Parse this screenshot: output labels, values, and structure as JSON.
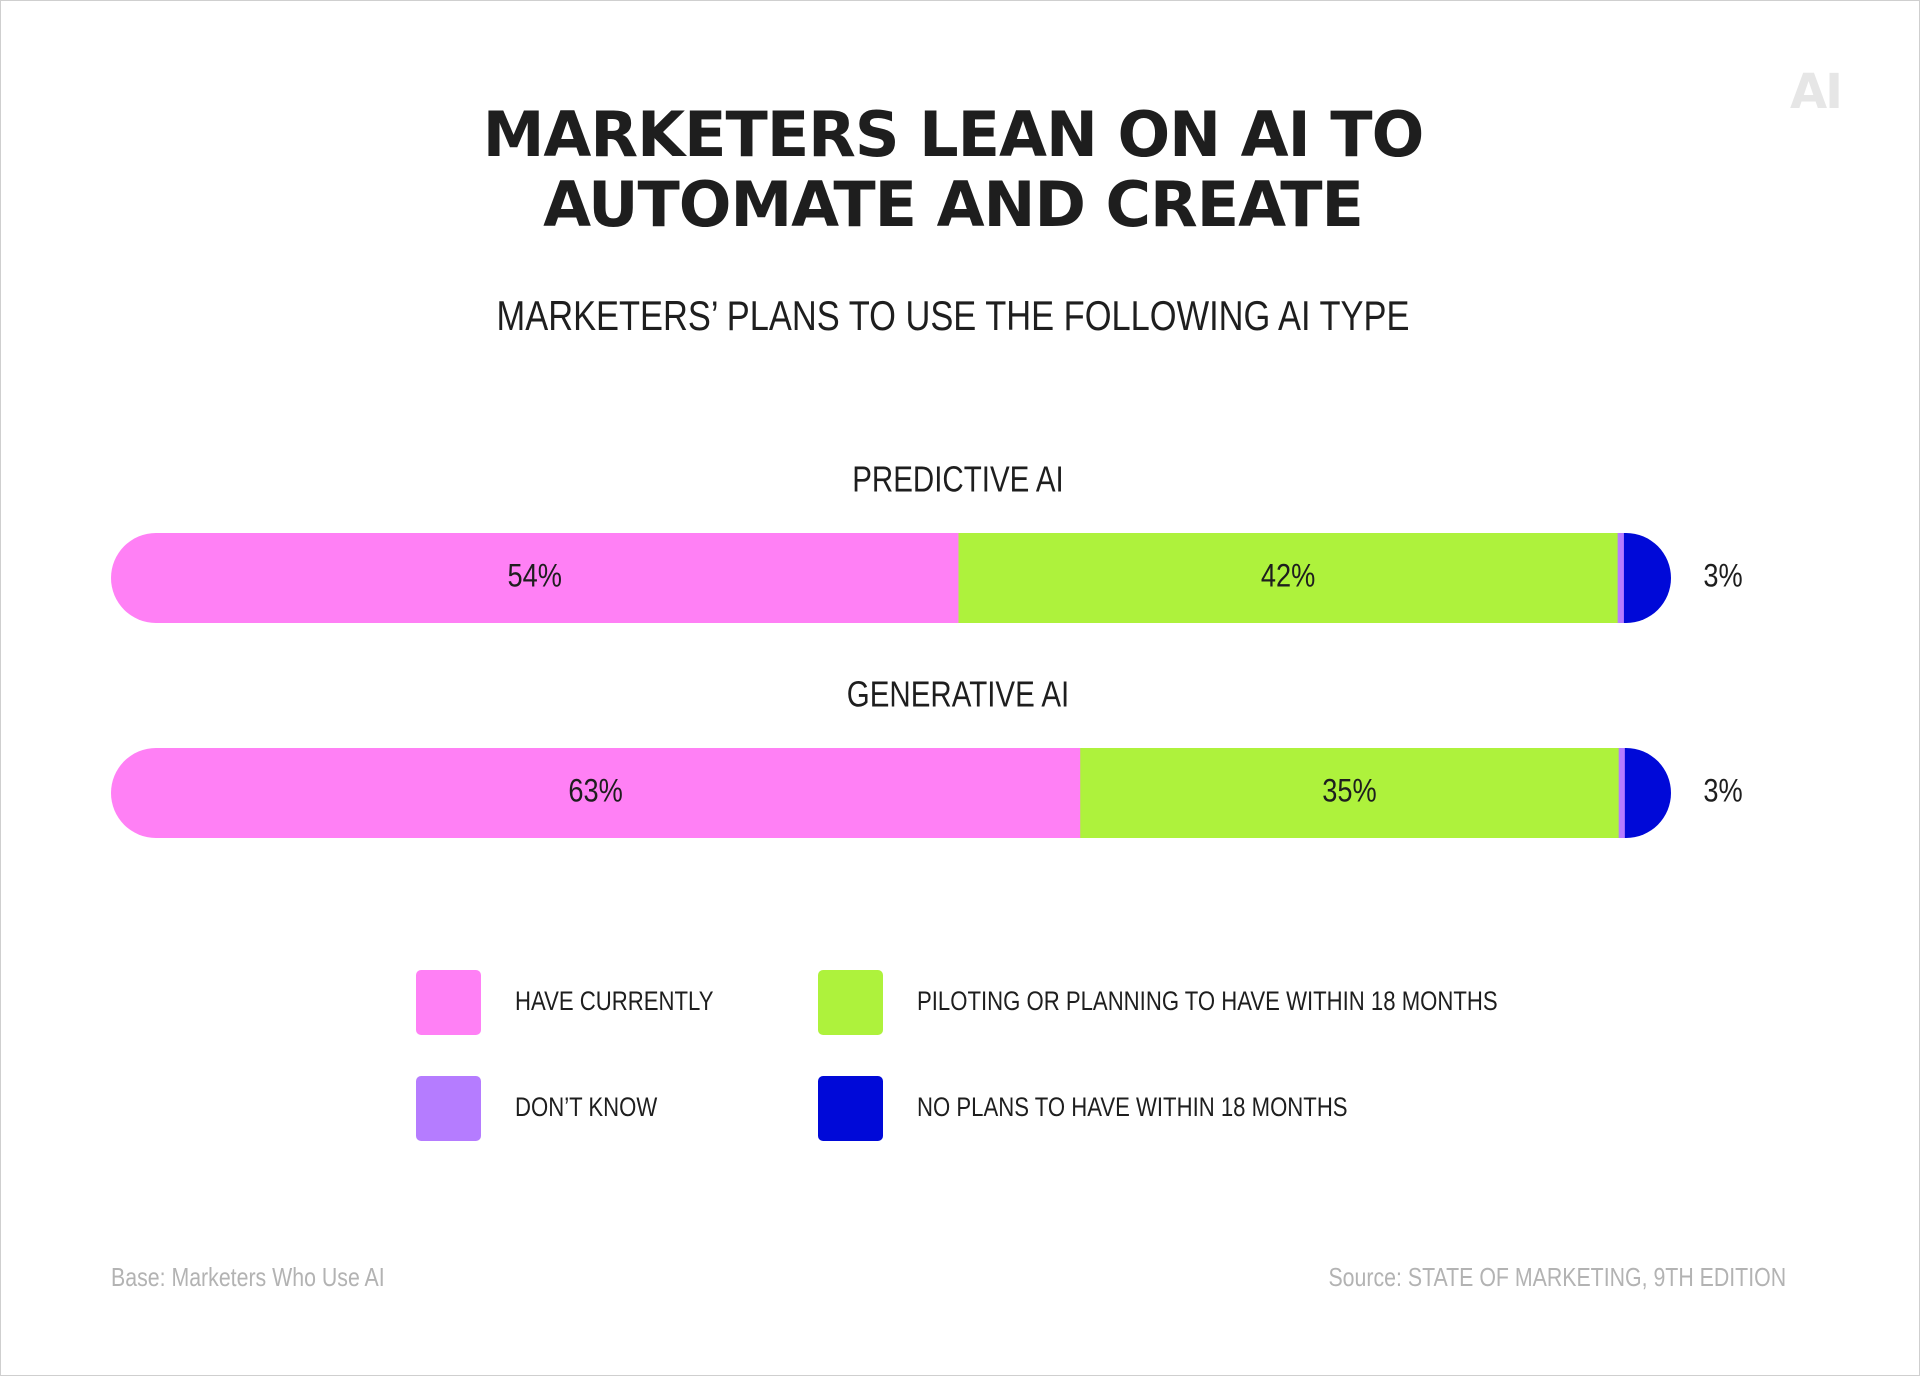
{
  "logo": "AI",
  "title_lines": [
    "MARKETERS LEAN ON AI TO",
    "AUTOMATE AND CREATE"
  ],
  "subtitle": "MARKETERS’ PLANS TO USE THE FOLLOWING AI TYPE",
  "chart_data": {
    "type": "bar",
    "orientation": "horizontal",
    "stacked": true,
    "title": "MARKETERS’ PLANS TO USE THE FOLLOWING AI TYPE",
    "categories": [
      "PREDICTIVE AI",
      "GENERATIVE AI"
    ],
    "series": [
      {
        "name": "HAVE CURRENTLY",
        "color": "#ff80f5",
        "values": [
          54,
          63
        ],
        "labels": [
          "54%",
          "63%"
        ]
      },
      {
        "name": "PILOTING OR PLANNING TO HAVE WITHIN 18 MONTHS",
        "color": "#aef23c",
        "values": [
          42,
          35
        ],
        "labels": [
          "42%",
          "35%"
        ]
      },
      {
        "name": "DON’T KNOW",
        "color": "#b57cff",
        "values": [
          0.4,
          0.4
        ],
        "labels": [
          "",
          ""
        ]
      },
      {
        "name": "NO PLANS TO HAVE WITHIN 18 MONTHS",
        "color": "#0009d8",
        "values": [
          3,
          3
        ],
        "labels": [
          "3%",
          "3%"
        ]
      }
    ],
    "xlim": [
      0,
      100
    ],
    "legend": "bottom"
  },
  "legend": [
    {
      "label": "HAVE CURRENTLY",
      "color": "#ff80f5"
    },
    {
      "label": "PILOTING OR PLANNING TO HAVE WITHIN 18 MONTHS",
      "color": "#aef23c"
    },
    {
      "label": "DON’T KNOW",
      "color": "#b57cff"
    },
    {
      "label": "NO PLANS TO HAVE WITHIN 18 MONTHS",
      "color": "#0009d8"
    }
  ],
  "footer": {
    "base": "Base: Marketers Who Use AI",
    "source": "Source: STATE OF MARKETING, 9TH EDITION"
  }
}
